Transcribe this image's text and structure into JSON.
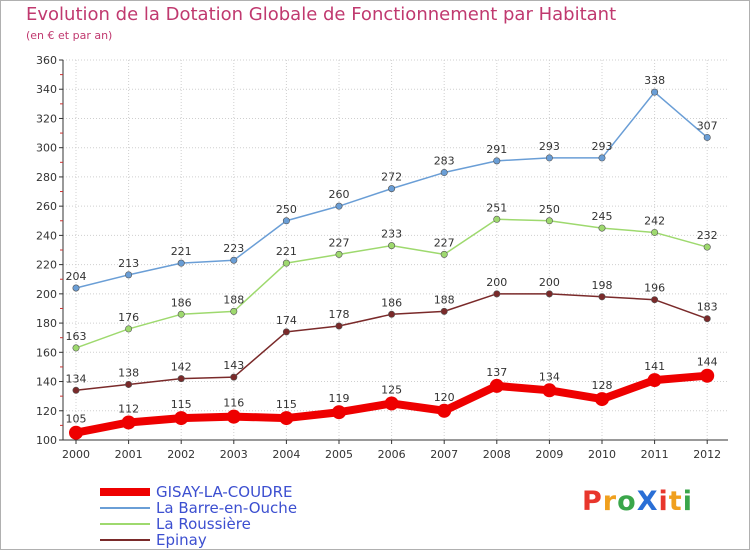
{
  "title": "Evolution de la Dotation Globale de Fonctionnement par Habitant",
  "subtitle": "(en € et par an)",
  "brand": {
    "text": "ProXiti",
    "colors": [
      "#e8362c",
      "#f0a01e",
      "#3aa64a",
      "#2a6fd6",
      "#e8362c",
      "#f0a01e",
      "#3aa64a"
    ]
  },
  "chart_data": {
    "type": "line",
    "x": [
      "2000",
      "2001",
      "2002",
      "2003",
      "2004",
      "2005",
      "2006",
      "2007",
      "2008",
      "2009",
      "2010",
      "2011",
      "2012"
    ],
    "ylim": [
      100,
      360
    ],
    "yticks": [
      "100",
      "120",
      "140",
      "160",
      "180",
      "200",
      "220",
      "240",
      "260",
      "280",
      "300",
      "320",
      "340",
      "360"
    ],
    "grid": true,
    "legend_position": "bottom-left",
    "series": [
      {
        "name": "GISAY-LA-COUDRE",
        "color": "#ee0000",
        "values": [
          105,
          112,
          115,
          116,
          115,
          119,
          125,
          120,
          137,
          134,
          128,
          141,
          144
        ]
      },
      {
        "name": "La Barre-en-Ouche",
        "color": "#6a9ed6",
        "values": [
          204,
          213,
          221,
          223,
          250,
          260,
          272,
          283,
          291,
          293,
          293,
          338,
          307
        ]
      },
      {
        "name": "La Roussière",
        "color": "#9ed96e",
        "values": [
          163,
          176,
          186,
          188,
          221,
          227,
          233,
          227,
          251,
          250,
          245,
          242,
          232
        ]
      },
      {
        "name": "Epinay",
        "color": "#7a2a2a",
        "values": [
          134,
          138,
          142,
          143,
          174,
          178,
          186,
          188,
          200,
          200,
          198,
          196,
          183
        ]
      }
    ]
  }
}
